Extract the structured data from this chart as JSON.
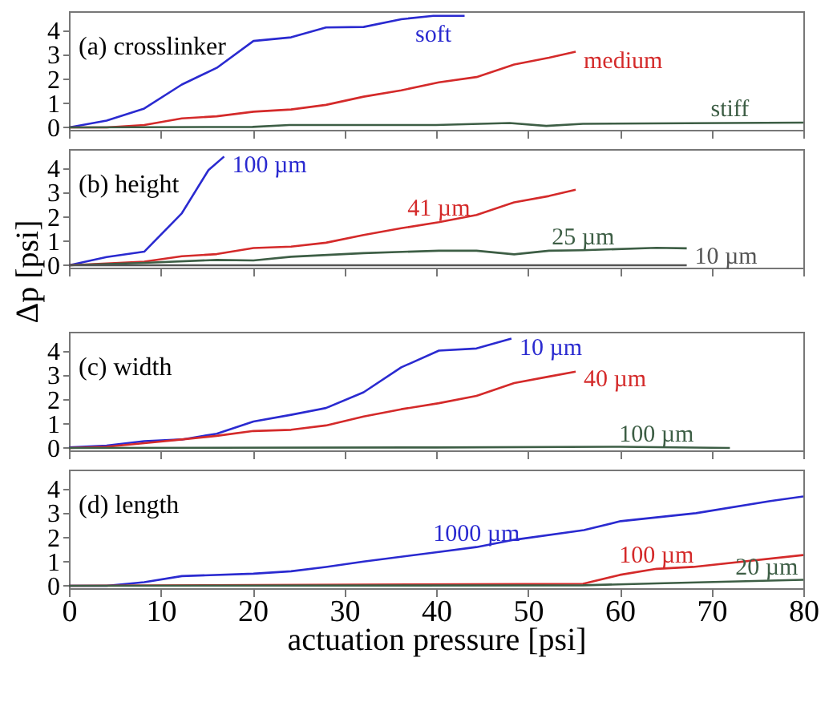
{
  "chart_data": [
    {
      "type": "line",
      "title": "(a) crosslinker",
      "xlim": [
        0,
        80
      ],
      "xticks": [
        0,
        10,
        20,
        30,
        40,
        50,
        60,
        70,
        80
      ],
      "ylim": [
        -0.1,
        4.8
      ],
      "yticks": [
        0,
        1,
        2,
        3,
        4
      ],
      "tick_labels": "y",
      "grid": false,
      "legend": false,
      "line_style": "solid",
      "series": [
        {
          "color": "#2a2ad0",
          "x": [
            0,
            4.1,
            8.2,
            12.3,
            16.1,
            20.1,
            24.2,
            28,
            32.1,
            36.2,
            39.7,
            43.1
          ],
          "values": [
            0,
            0.28,
            0.78,
            1.77,
            2.46,
            3.57,
            3.72,
            4.13,
            4.15,
            4.47,
            4.61,
            4.61
          ]
        },
        {
          "color": "#d42a2a",
          "x": [
            0,
            4.1,
            8.2,
            12.3,
            16.1,
            20.1,
            24.2,
            28,
            32.1,
            36.2,
            40.3,
            44.4,
            48.5,
            52.3,
            55.2
          ],
          "values": [
            0,
            0,
            0.1,
            0.37,
            0.46,
            0.65,
            0.74,
            0.93,
            1.27,
            1.53,
            1.86,
            2.08,
            2.6,
            2.88,
            3.13
          ]
        },
        {
          "color": "#3d5e45",
          "x": [
            0,
            20,
            24,
            40,
            48,
            52,
            56,
            80
          ],
          "values": [
            0,
            0.02,
            0.1,
            0.1,
            0.18,
            0.06,
            0.15,
            0.2
          ]
        }
      ],
      "annotations": [
        {
          "text": "soft",
          "x": 39.7,
          "y": 4.6
        },
        {
          "text": "medium",
          "x": 55.2,
          "y": 3.1
        },
        {
          "text": "stiff",
          "x": 72,
          "y": 0.2
        }
      ]
    },
    {
      "type": "line",
      "title": "(b) height",
      "ylabel": "Δp [psi]",
      "xlim": [
        0,
        80
      ],
      "xticks": [
        0,
        10,
        20,
        30,
        40,
        50,
        60,
        70,
        80
      ],
      "ylim": [
        -0.1,
        4.8
      ],
      "yticks": [
        0,
        1,
        2,
        3,
        4
      ],
      "tick_labels": "y",
      "grid": false,
      "legend": false,
      "line_style": "solid",
      "series": [
        {
          "color": "#2a2ad0",
          "x": [
            0,
            4.1,
            8.2,
            12.3,
            15.2,
            16.9
          ],
          "values": [
            0,
            0.34,
            0.56,
            2.15,
            3.93,
            4.49
          ]
        },
        {
          "color": "#d42a2a",
          "x": [
            0,
            8.2,
            12.3,
            16.1,
            20.1,
            24.2,
            28,
            32.1,
            36.2,
            40.3,
            44.4,
            48.5,
            52.3,
            55.2
          ],
          "values": [
            0,
            0.15,
            0.37,
            0.46,
            0.71,
            0.77,
            0.93,
            1.25,
            1.53,
            1.78,
            2.08,
            2.6,
            2.86,
            3.12
          ]
        },
        {
          "color": "#3d5e45",
          "x": [
            0,
            8.2,
            16.1,
            20.1,
            24.2,
            32.1,
            40.3,
            44.4,
            48.5,
            52.3,
            56,
            64,
            67.3
          ],
          "values": [
            0,
            0.1,
            0.22,
            0.2,
            0.35,
            0.5,
            0.6,
            0.6,
            0.45,
            0.6,
            0.62,
            0.72,
            0.7
          ]
        },
        {
          "color": "#555555",
          "x": [
            0,
            67.3
          ],
          "values": [
            0,
            0
          ]
        }
      ],
      "annotations": [
        {
          "text": "100 µm",
          "x": 16.9,
          "y": 4.5
        },
        {
          "text": "41 µm",
          "x": 40.3,
          "y": 1.8
        },
        {
          "text": "25 µm",
          "x": 56,
          "y": 0.6
        },
        {
          "text": "10 µm",
          "x": 67.3,
          "y": 0
        }
      ]
    },
    {
      "type": "line",
      "title": "(c) width",
      "xlim": [
        0,
        80
      ],
      "xticks": [
        0,
        10,
        20,
        30,
        40,
        50,
        60,
        70,
        80
      ],
      "ylim": [
        -0.1,
        4.8
      ],
      "yticks": [
        0,
        1,
        2,
        3,
        4
      ],
      "tick_labels": "y",
      "grid": false,
      "legend": false,
      "line_style": "solid",
      "series": [
        {
          "color": "#2a2ad0",
          "x": [
            0,
            4.1,
            8.2,
            12.3,
            16.1,
            20.1,
            24.2,
            28,
            32.1,
            36.2,
            40.3,
            44.4,
            48.2
          ],
          "values": [
            0.02,
            0.1,
            0.28,
            0.35,
            0.59,
            1.09,
            1.37,
            1.65,
            2.3,
            3.33,
            4.02,
            4.11,
            4.52
          ]
        },
        {
          "color": "#d42a2a",
          "x": [
            0,
            4.1,
            8.2,
            12.3,
            16.1,
            20.1,
            24.2,
            28,
            32.1,
            36.2,
            40.3,
            44.4,
            48.5,
            52.3,
            55.2
          ],
          "values": [
            0,
            0.05,
            0.2,
            0.35,
            0.5,
            0.7,
            0.75,
            0.93,
            1.3,
            1.6,
            1.85,
            2.15,
            2.68,
            2.95,
            3.15
          ]
        },
        {
          "color": "#3d5e45",
          "x": [
            0,
            40,
            60,
            72
          ],
          "values": [
            0,
            0.02,
            0.05,
            0
          ]
        }
      ],
      "annotations": [
        {
          "text": "10 µm",
          "x": 48.2,
          "y": 4.5
        },
        {
          "text": "40 µm",
          "x": 55.2,
          "y": 3.2
        },
        {
          "text": "100 µm",
          "x": 64,
          "y": 0
        }
      ]
    },
    {
      "type": "line",
      "title": "(d) length",
      "xlabel": "actuation pressure [psi]",
      "xlim": [
        0,
        80
      ],
      "xticks": [
        0,
        10,
        20,
        30,
        40,
        50,
        60,
        70,
        80
      ],
      "ylim": [
        -0.1,
        4.8
      ],
      "yticks": [
        0,
        1,
        2,
        3,
        4
      ],
      "grid": false,
      "legend": false,
      "line_style": "solid",
      "series": [
        {
          "color": "#2a2ad0",
          "x": [
            0,
            4.1,
            8.2,
            12.3,
            20.1,
            24.2,
            28,
            32.1,
            40.3,
            44.4,
            48.5,
            56.1,
            60.1,
            68.3,
            76.4,
            80
          ],
          "values": [
            0,
            0,
            0.15,
            0.4,
            0.5,
            0.6,
            0.78,
            1.0,
            1.4,
            1.6,
            1.9,
            2.3,
            2.67,
            3.0,
            3.5,
            3.69
          ]
        },
        {
          "color": "#d42a2a",
          "x": [
            0,
            56,
            60,
            64,
            68,
            80
          ],
          "values": [
            0,
            0.08,
            0.45,
            0.7,
            0.78,
            1.27
          ]
        },
        {
          "color": "#3d5e45",
          "x": [
            0,
            56,
            64,
            80
          ],
          "values": [
            0,
            0.02,
            0.1,
            0.25
          ]
        }
      ],
      "annotations": [
        {
          "text": "1000 µm",
          "x": 44.4,
          "y": 1.6
        },
        {
          "text": "100 µm",
          "x": 64,
          "y": 0.7
        },
        {
          "text": "20 µm",
          "x": 76,
          "y": 0.2
        }
      ]
    }
  ]
}
